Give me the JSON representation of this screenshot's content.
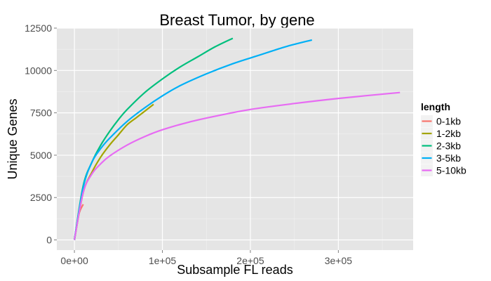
{
  "chart_data": {
    "type": "line",
    "title": "Breast Tumor, by gene",
    "xlabel": "Subsample FL reads",
    "ylabel": "Unique Genes",
    "xlim": [
      -20000,
      385000
    ],
    "ylim": [
      -600,
      12500
    ],
    "x_ticks": [
      0,
      100000,
      200000,
      300000
    ],
    "x_tick_labels": [
      "0e+00",
      "1e+05",
      "2e+05",
      "3e+05"
    ],
    "y_ticks": [
      0,
      2500,
      5000,
      7500,
      10000,
      12500
    ],
    "y_tick_labels": [
      "0",
      "2500",
      "5000",
      "7500",
      "10000",
      "12500"
    ],
    "grid": true,
    "legend": {
      "title": "length",
      "placement": "right"
    },
    "series": [
      {
        "name": "0-1kb",
        "color": "#F8766D",
        "x": [
          0,
          5000,
          10000
        ],
        "y": [
          0,
          1500,
          2100
        ]
      },
      {
        "name": "1-2kb",
        "color": "#A3A500",
        "x": [
          0,
          10000,
          20000,
          30000,
          40000,
          50000,
          60000,
          70000,
          80000,
          90000
        ],
        "y": [
          0,
          2800,
          4000,
          4900,
          5600,
          6200,
          6800,
          7200,
          7600,
          8000
        ]
      },
      {
        "name": "2-3kb",
        "color": "#00BF7D",
        "x": [
          0,
          10000,
          20000,
          30000,
          40000,
          50000,
          60000,
          80000,
          100000,
          120000,
          140000,
          160000,
          180000
        ],
        "y": [
          0,
          3200,
          4600,
          5600,
          6400,
          7100,
          7700,
          8700,
          9500,
          10200,
          10800,
          11400,
          11900
        ]
      },
      {
        "name": "3-5kb",
        "color": "#00B0F6",
        "x": [
          0,
          10000,
          20000,
          30000,
          40000,
          60000,
          80000,
          100000,
          120000,
          150000,
          180000,
          210000,
          240000,
          270000
        ],
        "y": [
          0,
          3100,
          4600,
          5400,
          6000,
          7000,
          7800,
          8500,
          9100,
          9800,
          10400,
          10900,
          11400,
          11800
        ]
      },
      {
        "name": "5-10kb",
        "color": "#E76BF3",
        "x": [
          0,
          10000,
          20000,
          30000,
          40000,
          60000,
          80000,
          100000,
          130000,
          160000,
          200000,
          250000,
          300000,
          370000
        ],
        "y": [
          0,
          2800,
          3900,
          4500,
          4950,
          5600,
          6100,
          6500,
          6950,
          7300,
          7700,
          8050,
          8350,
          8700
        ]
      }
    ]
  }
}
